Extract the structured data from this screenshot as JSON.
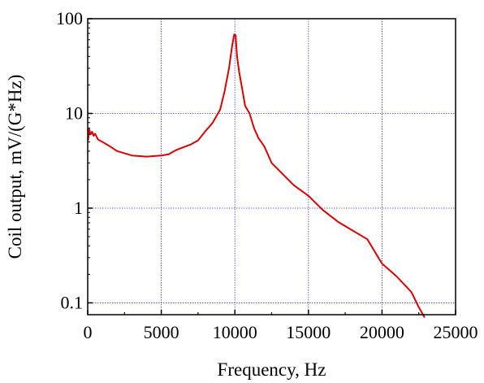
{
  "chart_data": {
    "type": "line",
    "title": "",
    "xlabel": "Frequency, Hz",
    "ylabel": "Coil output, mV/(G*Hz)",
    "xlim": [
      0,
      25000
    ],
    "ylim": [
      0.075,
      100
    ],
    "yscale": "log",
    "grid": true,
    "legend": "none",
    "x_ticks": [
      0,
      5000,
      10000,
      15000,
      20000,
      25000
    ],
    "x_tick_labels": [
      "0",
      "5000",
      "10000",
      "15000",
      "20000",
      "25000"
    ],
    "y_ticks": [
      0.1,
      1,
      10,
      100
    ],
    "y_tick_labels": [
      "0.1",
      "1",
      "10",
      "100"
    ],
    "colors": {
      "line": "#e00000",
      "grid": "#4040c8",
      "axis": "#000000"
    },
    "series": [
      {
        "x": [
          30,
          100,
          200,
          300,
          400,
          500,
          700,
          1000,
          1500,
          2000,
          3000,
          4000,
          5000,
          5500,
          6000,
          7000,
          7500,
          8000,
          8500,
          9000,
          9300,
          9600,
          9800,
          9950,
          10050,
          10150,
          10300,
          10500,
          10700,
          11000,
          11300,
          11600,
          12000,
          12500,
          13000,
          14000,
          15000,
          16000,
          17000,
          18000,
          19000,
          20000,
          21000,
          22000,
          22500,
          22900
        ],
        "y": [
          5.2,
          6.8,
          6.0,
          6.4,
          5.8,
          6.1,
          5.3,
          5.0,
          4.5,
          4.0,
          3.6,
          3.5,
          3.6,
          3.7,
          4.1,
          4.7,
          5.2,
          6.5,
          8.0,
          11.0,
          17.0,
          30.0,
          50.0,
          68.0,
          67.0,
          40.0,
          27.0,
          18.0,
          12.0,
          10.0,
          7.0,
          5.5,
          4.5,
          3.0,
          2.5,
          1.75,
          1.35,
          0.95,
          0.72,
          0.58,
          0.47,
          0.26,
          0.19,
          0.13,
          0.09,
          0.07
        ]
      }
    ]
  }
}
